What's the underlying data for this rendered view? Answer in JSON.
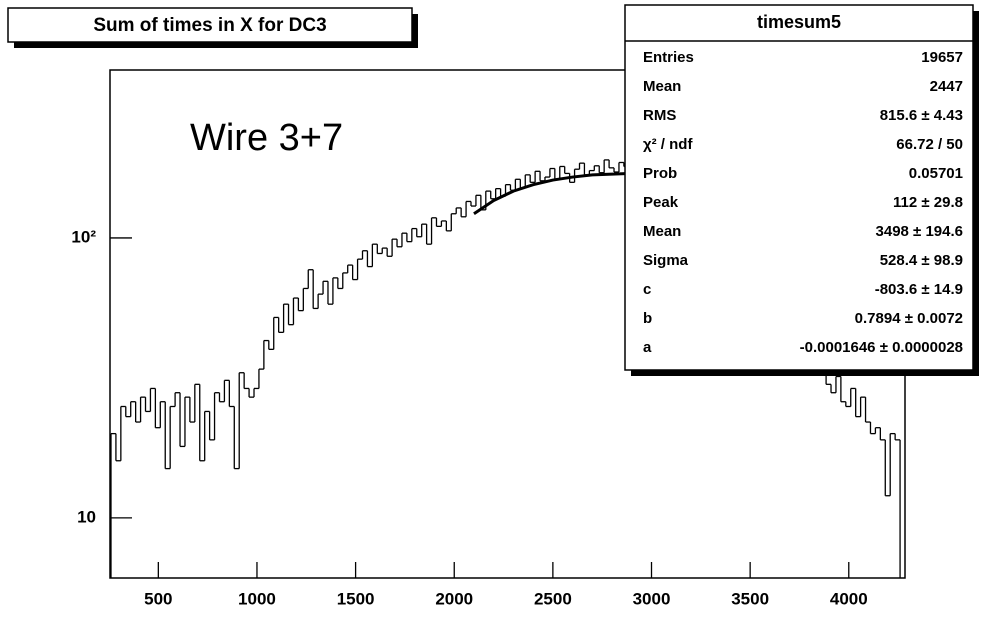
{
  "chart_data": {
    "type": "histogram",
    "title": "Sum of times in X for DC3",
    "annotation": "Wire 3+7",
    "log_y": true,
    "color": "#000000",
    "bins": [
      260,
      285,
      310,
      335,
      360,
      385,
      410,
      435,
      460,
      485,
      510,
      535,
      560,
      585,
      610,
      635,
      660,
      685,
      710,
      735,
      760,
      785,
      810,
      835,
      860,
      885,
      910,
      935,
      960,
      985,
      1010,
      1035,
      1060,
      1085,
      1110,
      1135,
      1160,
      1185,
      1210,
      1235,
      1260,
      1285,
      1310,
      1335,
      1360,
      1385,
      1410,
      1435,
      1460,
      1485,
      1510,
      1535,
      1560,
      1585,
      1610,
      1635,
      1660,
      1685,
      1710,
      1735,
      1760,
      1785,
      1810,
      1835,
      1860,
      1885,
      1910,
      1935,
      1960,
      1985,
      2010,
      2035,
      2060,
      2085,
      2110,
      2135,
      2160,
      2185,
      2210,
      2235,
      2260,
      2285,
      2310,
      2335,
      2360,
      2385,
      2410,
      2435,
      2460,
      2485,
      2510,
      2535,
      2560,
      2585,
      2610,
      2635,
      2660,
      2685,
      2710,
      2735,
      2760,
      2785,
      2810,
      2835,
      2860,
      2885,
      2910,
      2935,
      2960,
      2985,
      3010,
      3035,
      3060,
      3085,
      3110,
      3135,
      3160,
      3185,
      3210,
      3235,
      3260,
      3285,
      3310,
      3335,
      3360,
      3385,
      3410,
      3435,
      3460,
      3485,
      3510,
      3535,
      3560,
      3585,
      3610,
      3635,
      3660,
      3685,
      3710,
      3735,
      3760,
      3785,
      3810,
      3835,
      3860,
      3885,
      3910,
      3935,
      3960,
      3985,
      4010,
      4035,
      4060,
      4085,
      4110,
      4135,
      4160,
      4185,
      4210,
      4235,
      4260
    ],
    "values": [
      20,
      16,
      25,
      23,
      26,
      22,
      27,
      24,
      29,
      21,
      26,
      15,
      25,
      28,
      18,
      27,
      22,
      30,
      16,
      24,
      19,
      28,
      26,
      31,
      25,
      15,
      33,
      29,
      27,
      29,
      34,
      43,
      40,
      52,
      46,
      58,
      49,
      61,
      55,
      66,
      77,
      56,
      63,
      70,
      58,
      72,
      66,
      75,
      80,
      71,
      84,
      90,
      79,
      95,
      88,
      92,
      86,
      99,
      93,
      104,
      97,
      108,
      101,
      112,
      95,
      118,
      110,
      115,
      106,
      122,
      128,
      119,
      135,
      130,
      142,
      126,
      147,
      138,
      150,
      141,
      155,
      148,
      162,
      151,
      168,
      158,
      173,
      160,
      165,
      177,
      162,
      180,
      170,
      158,
      176,
      185,
      168,
      174,
      181,
      171,
      190,
      178,
      172,
      186,
      180,
      175,
      184,
      170,
      178,
      182,
      176,
      168,
      180,
      172,
      165,
      174,
      160,
      168,
      155,
      162,
      150,
      158,
      142,
      148,
      135,
      140,
      126,
      132,
      118,
      121,
      108,
      112,
      96,
      100,
      88,
      84,
      76,
      72,
      64,
      58,
      50,
      45,
      36,
      34,
      38,
      30,
      28,
      32,
      26,
      25,
      29,
      23,
      27,
      22,
      20,
      21,
      19,
      12,
      20,
      19
    ],
    "fit": {
      "color": "#000000",
      "x": [
        2100,
        2200,
        2300,
        2400,
        2500,
        2600,
        2700,
        2800,
        2900
      ],
      "values": [
        122,
        136,
        147,
        155,
        161,
        165,
        168,
        169,
        170
      ]
    },
    "xlim": [
      255,
      4285
    ],
    "ylim": [
      6.1,
      398
    ],
    "xticks": [
      500,
      1000,
      1500,
      2000,
      2500,
      3000,
      3500,
      4000
    ],
    "yticks": [
      10,
      {
        "value": 100,
        "label": "10²"
      }
    ],
    "stats": {
      "title": "timesum5",
      "rows": [
        [
          "Entries",
          "19657"
        ],
        [
          "Mean",
          "2447"
        ],
        [
          "RMS",
          "815.6 ±  4.43"
        ],
        [
          "χ² / ndf",
          "66.72 / 50"
        ],
        [
          "Prob",
          "0.05701"
        ],
        [
          "Peak",
          "112 ± 29.8"
        ],
        [
          "Mean",
          "3498 ± 194.6"
        ],
        [
          "Sigma",
          "528.4 ± 98.9"
        ],
        [
          "c",
          "-803.6 ± 14.9"
        ],
        [
          "b",
          "0.7894 ± 0.0072"
        ],
        [
          "a",
          "-0.0001646 ± 0.0000028"
        ]
      ]
    }
  }
}
